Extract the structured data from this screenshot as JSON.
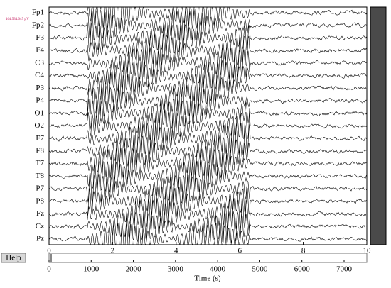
{
  "channels": [
    "Fp1",
    "Fp2",
    "F3",
    "F4",
    "C3",
    "C4",
    "P3",
    "P4",
    "O1",
    "O2",
    "F7",
    "F8",
    "T7",
    "T8",
    "P7",
    "P8",
    "Fz",
    "Cz",
    "Pz"
  ],
  "scale_label": "464.534.045 µV",
  "epoch_axis": {
    "xlim": [
      0,
      10
    ],
    "xticks": [
      0,
      2,
      4,
      6,
      8,
      10
    ]
  },
  "time_axis": {
    "xlim": [
      0,
      7540
    ],
    "xticks": [
      0,
      1000,
      2000,
      3000,
      4000,
      5000,
      6000,
      7000
    ],
    "label": "Time (s)"
  },
  "help_button": "Help"
}
